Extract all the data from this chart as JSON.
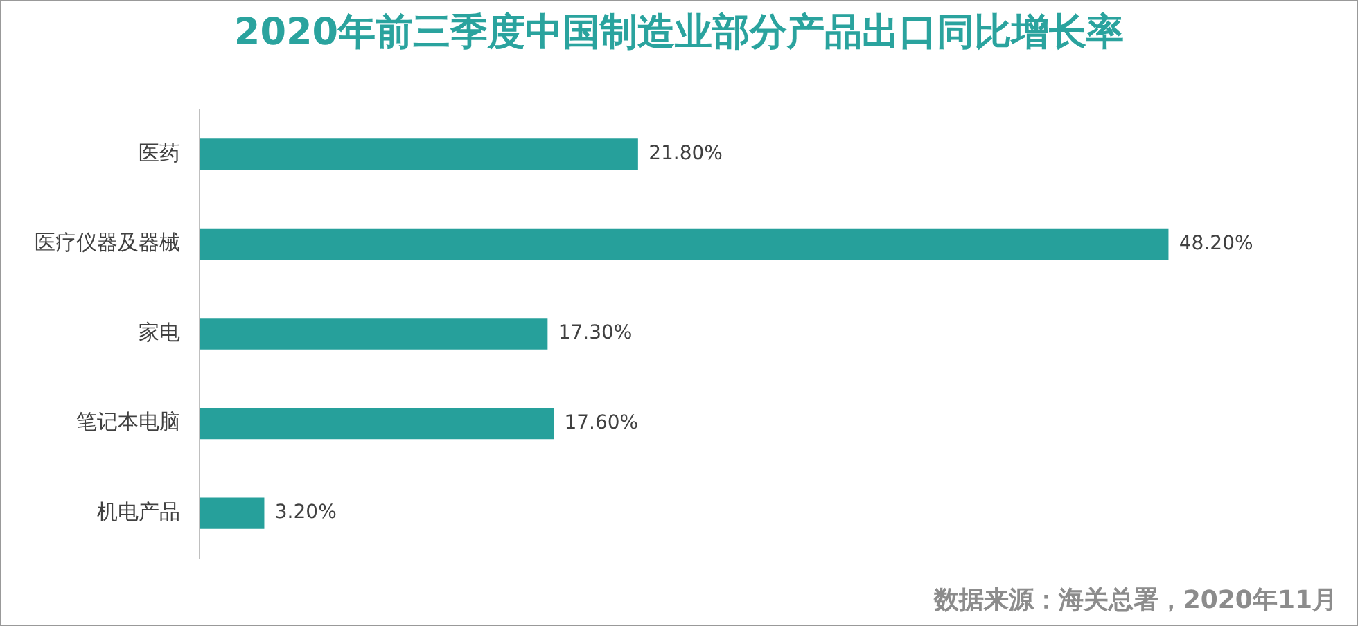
{
  "chart_data": {
    "type": "bar",
    "orientation": "horizontal",
    "title": "2020年前三季度中国制造业部分产品出口同比增长率",
    "categories": [
      "医药",
      "医疗仪器及器械",
      "家电",
      "笔记本电脑",
      "机电产品"
    ],
    "values": [
      21.8,
      48.2,
      17.3,
      17.6,
      3.2
    ],
    "color": "#26a09b",
    "value_labels": [
      "21.80%",
      "48.20%",
      "17.30%",
      "17.60%",
      "3.20%"
    ],
    "annotations": [
      "数据来源：海关总署，2020年11月"
    ]
  }
}
